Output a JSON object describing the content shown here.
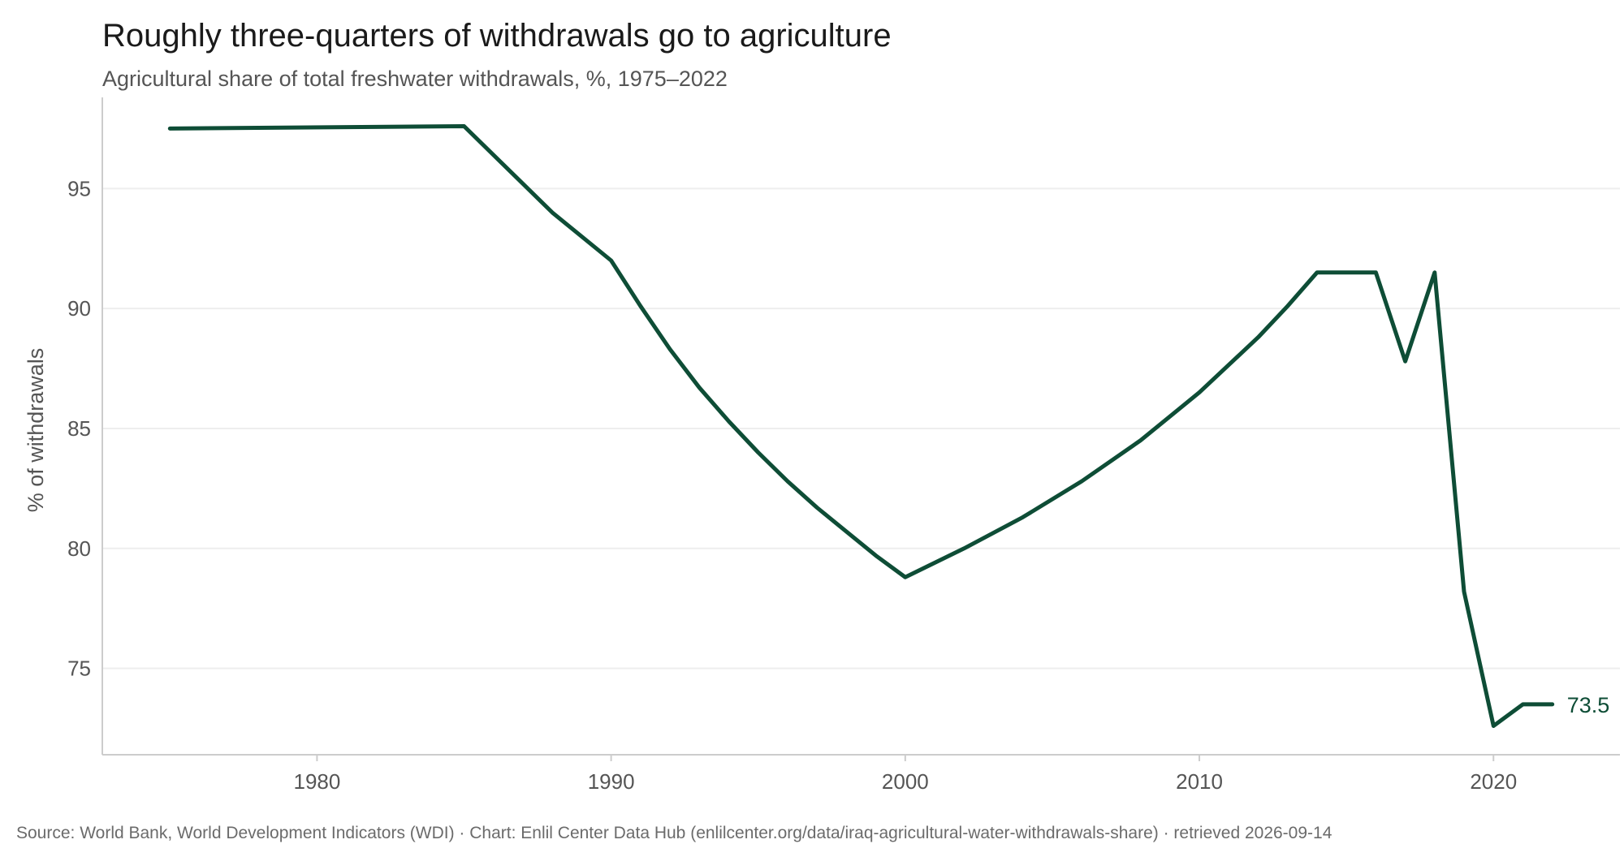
{
  "header": {
    "title": "Roughly three-quarters of withdrawals go to agriculture",
    "subtitle": "Agricultural share of total freshwater withdrawals, %, 1975–2022"
  },
  "footer": {
    "source": "Source: World Bank, World Development Indicators (WDI) · Chart: Enlil Center Data Hub (enlilcenter.org/data/iraq-agricultural-water-withdrawals-share) · retrieved 2026-09-14"
  },
  "colors": {
    "line": "#0e4d36",
    "grid": "#eeeeee",
    "axis": "#cccccc",
    "text": "#555555"
  },
  "chart_data": {
    "type": "line",
    "title": "Roughly three-quarters of withdrawals go to agriculture",
    "subtitle": "Agricultural share of total freshwater withdrawals, %, 1975–2022",
    "xlabel": "",
    "ylabel": "% of withdrawals",
    "xlim": [
      1972.7,
      2024.3
    ],
    "ylim": [
      71.4,
      98.8
    ],
    "xticks": [
      1980,
      1990,
      2000,
      2010,
      2020
    ],
    "yticks": [
      75,
      80,
      85,
      90,
      95
    ],
    "grid": "horizontal",
    "legend": "none",
    "end_label": "73.5",
    "series": [
      {
        "x": [
          1975,
          1985,
          1988,
          1990,
          1991,
          1992,
          1993,
          1994,
          1995,
          1996,
          1997,
          1998,
          1999,
          2000,
          2002,
          2004,
          2006,
          2008,
          2010,
          2012,
          2013,
          2014,
          2015,
          2016,
          2017,
          2018,
          2019,
          2020,
          2021,
          2022
        ],
        "values": [
          97.5,
          97.6,
          94.0,
          92.0,
          90.1,
          88.3,
          86.7,
          85.3,
          84.0,
          82.8,
          81.7,
          80.7,
          79.7,
          78.8,
          80.0,
          81.3,
          82.8,
          84.5,
          86.5,
          88.8,
          90.1,
          91.5,
          91.5,
          91.5,
          87.8,
          91.5,
          78.2,
          72.6,
          73.5,
          73.5
        ]
      }
    ]
  }
}
